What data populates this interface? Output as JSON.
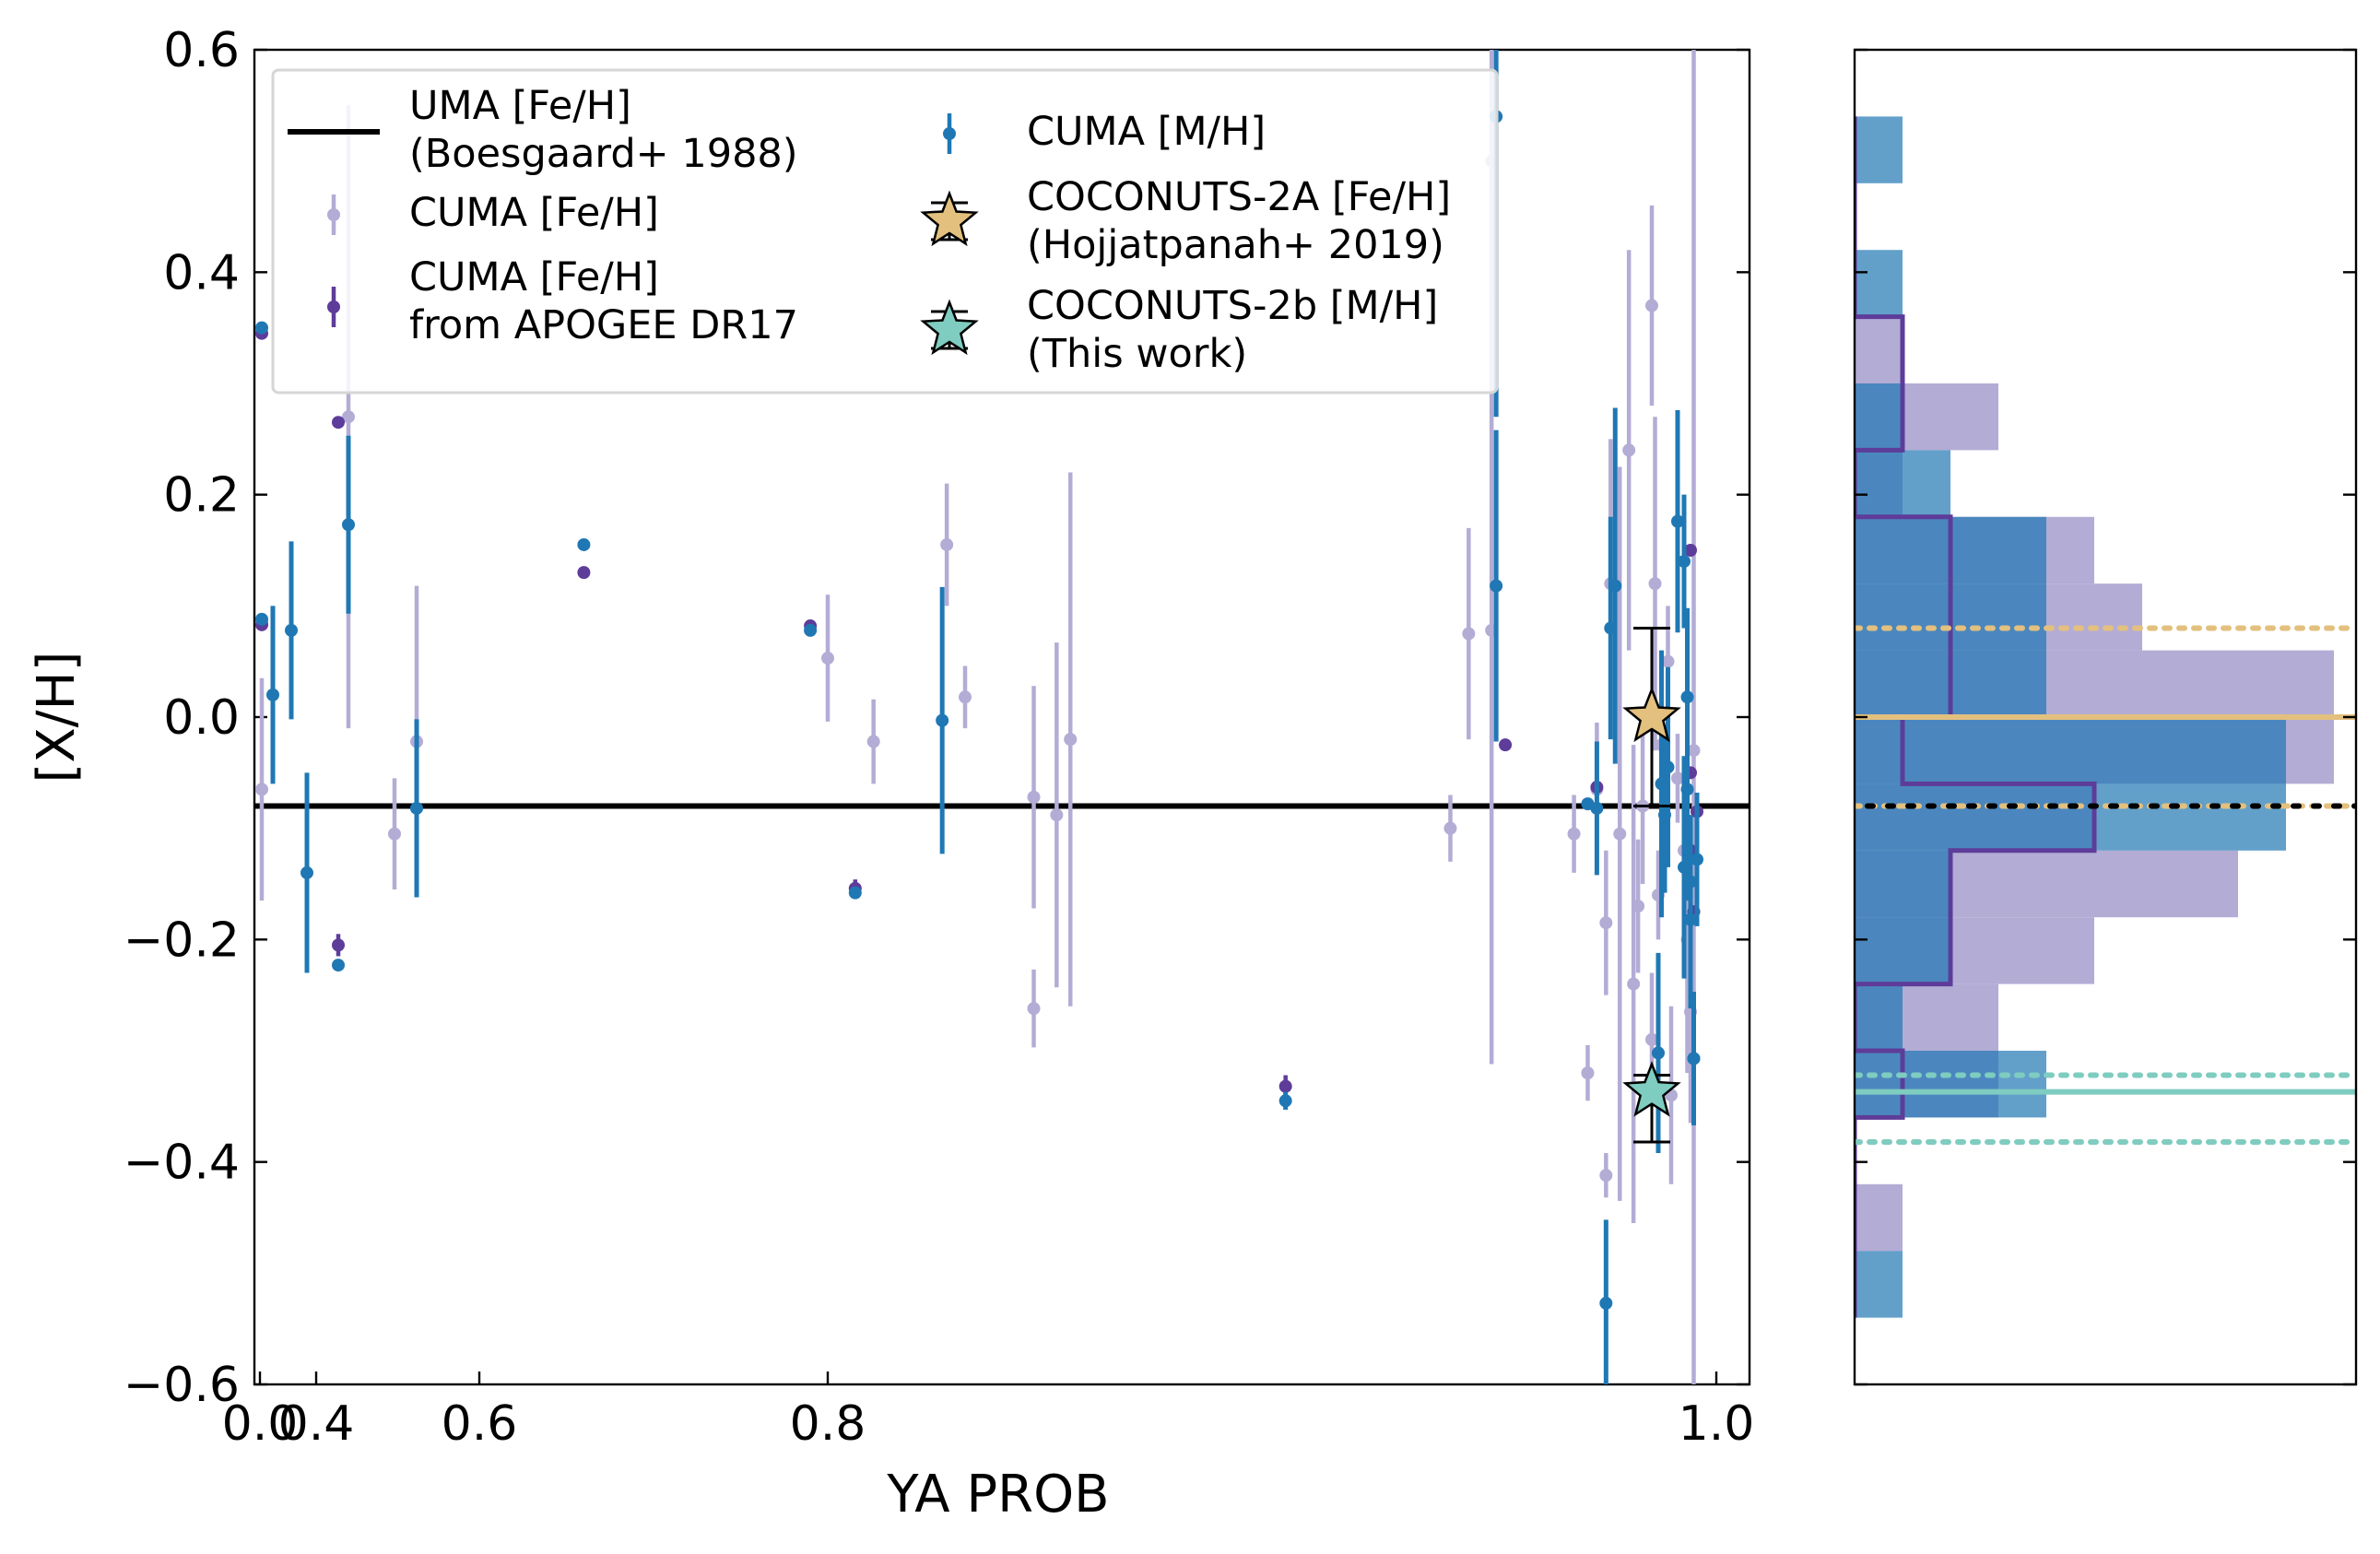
{
  "chart_data": [
    {
      "type": "scatter",
      "xlabel": "YA PROB",
      "ylabel": "[X/H]",
      "ylim": [
        -0.6,
        0.6
      ],
      "x_tick_positions": [
        0.0,
        0.4,
        0.6,
        0.8,
        1.0
      ],
      "x_tick_labels": [
        "0.0",
        "0.4",
        "0.6",
        "0.8",
        "1.0"
      ],
      "y_ticks": [
        0.6,
        0.4,
        0.2,
        0.0,
        -0.2,
        -0.4,
        -0.6
      ],
      "y_tick_labels": [
        "0.6",
        "0.4",
        "0.2",
        "0.0",
        "−0.2",
        "−0.4",
        "−0.6"
      ],
      "reference_line": {
        "name": "UMA [Fe/H] (Boesgaard+ 1988)",
        "y": -0.08,
        "color": "#000000"
      },
      "legend": {
        "position": "upper-left",
        "entries": [
          {
            "key": "uma",
            "lines": [
              "UMA [Fe/H]",
              "(Boesgaard+ 1988)"
            ]
          },
          {
            "key": "cuma_feh",
            "lines": [
              "CUMA [Fe/H]"
            ]
          },
          {
            "key": "cuma_apogee",
            "lines": [
              "CUMA [Fe/H]",
              "from APOGEE DR17"
            ]
          },
          {
            "key": "cuma_mh",
            "lines": [
              "CUMA [M/H]"
            ]
          },
          {
            "key": "coconuts2a",
            "lines": [
              "COCONUTS-2A [Fe/H]",
              "(Hojjatpanah+ 2019)"
            ]
          },
          {
            "key": "coconuts2b",
            "lines": [
              "COCONUTS-2b [M/H]",
              "(This work)"
            ]
          }
        ]
      },
      "series": [
        {
          "name": "CUMA [Fe/H]",
          "key": "cuma_feh",
          "color": "#b3acd5",
          "points": [
            {
              "x": 0.02,
              "y": 0.085,
              "err": 0.0
            },
            {
              "x": 0.02,
              "y": -0.065,
              "err": 0.1
            },
            {
              "x": 0.145,
              "y": 0.27,
              "err": 0.28
            },
            {
              "x": 0.22,
              "y": -0.105,
              "err": 0.05
            },
            {
              "x": 0.24,
              "y": -0.022,
              "err": 0.14
            },
            {
              "x": 0.8,
              "y": 0.053,
              "err": 0.057
            },
            {
              "x": 0.81,
              "y": -0.022,
              "err": 0.038
            },
            {
              "x": 0.826,
              "y": 0.155,
              "err": 0.055
            },
            {
              "x": 0.83,
              "y": 0.018,
              "err": 0.028
            },
            {
              "x": 0.845,
              "y": -0.072,
              "err": 0.1
            },
            {
              "x": 0.845,
              "y": -0.262,
              "err": 0.035
            },
            {
              "x": 0.85,
              "y": -0.088,
              "err": 0.155
            },
            {
              "x": 0.853,
              "y": -0.02,
              "err": 0.24
            },
            {
              "x": 0.936,
              "y": -0.1,
              "err": 0.03
            },
            {
              "x": 0.94,
              "y": 0.075,
              "err": 0.095
            },
            {
              "x": 0.945,
              "y": 0.078,
              "err": 0.39
            },
            {
              "x": 0.945,
              "y": 0.5,
              "err": 0.12
            },
            {
              "x": 0.963,
              "y": -0.105,
              "err": 0.035
            },
            {
              "x": 0.966,
              "y": -0.32,
              "err": 0.025
            },
            {
              "x": 0.968,
              "y": -0.065,
              "err": 0.06
            },
            {
              "x": 0.97,
              "y": -0.412,
              "err": 0.02
            },
            {
              "x": 0.97,
              "y": -0.185,
              "err": 0.065
            },
            {
              "x": 0.971,
              "y": 0.12,
              "err": 0.13
            },
            {
              "x": 0.973,
              "y": -0.105,
              "err": 0.33
            },
            {
              "x": 0.975,
              "y": 0.24,
              "err": 0.18
            },
            {
              "x": 0.976,
              "y": -0.24,
              "err": 0.215
            },
            {
              "x": 0.977,
              "y": -0.17,
              "err": 0.06
            },
            {
              "x": 0.978,
              "y": -0.08,
              "err": 0.07
            },
            {
              "x": 0.98,
              "y": 0.37,
              "err": 0.09
            },
            {
              "x": 0.98,
              "y": -0.29,
              "err": 0.06
            },
            {
              "x": 0.981,
              "y": 0.12,
              "err": 0.15
            },
            {
              "x": 0.982,
              "y": -0.16,
              "err": 0.04
            },
            {
              "x": 0.983,
              "y": -0.025,
              "err": 0.04
            },
            {
              "x": 0.985,
              "y": 0.05,
              "err": 0.05
            },
            {
              "x": 0.986,
              "y": -0.34,
              "err": 0.08
            },
            {
              "x": 0.988,
              "y": -0.055,
              "err": 0.04
            },
            {
              "x": 0.99,
              "y": -0.12,
              "err": 0.03
            },
            {
              "x": 0.991,
              "y": -0.2,
              "err": 0.12
            },
            {
              "x": 0.992,
              "y": -0.265,
              "err": 0.1
            },
            {
              "x": 0.993,
              "y": -0.03,
              "err": 0.63
            }
          ]
        },
        {
          "name": "CUMA [Fe/H] from APOGEE DR17",
          "key": "cuma_apogee",
          "color": "#5e3c99",
          "points": [
            {
              "x": 0.02,
              "y": 0.345,
              "err": 0.0
            },
            {
              "x": 0.02,
              "y": 0.083,
              "err": 0.0
            },
            {
              "x": 0.14,
              "y": 0.265,
              "err": 0.0
            },
            {
              "x": 0.14,
              "y": -0.205,
              "err": 0.01
            },
            {
              "x": 0.66,
              "y": 0.13,
              "err": 0.0
            },
            {
              "x": 0.79,
              "y": 0.082,
              "err": 0.0
            },
            {
              "x": 0.806,
              "y": -0.154,
              "err": 0.008
            },
            {
              "x": 0.9,
              "y": -0.332,
              "err": 0.01
            },
            {
              "x": 0.948,
              "y": -0.025,
              "err": 0.0
            },
            {
              "x": 0.968,
              "y": -0.063,
              "err": 0.0
            },
            {
              "x": 0.992,
              "y": 0.15,
              "err": 0.0
            },
            {
              "x": 0.992,
              "y": -0.05,
              "err": 0.0
            },
            {
              "x": 0.992,
              "y": -0.12,
              "err": 0.0
            },
            {
              "x": 0.993,
              "y": -0.175,
              "err": 0.0
            },
            {
              "x": 0.994,
              "y": -0.085,
              "err": 0.0
            }
          ]
        },
        {
          "name": "CUMA [M/H]",
          "key": "cuma_mh",
          "color": "#1f78b4",
          "points": [
            {
              "x": 0.02,
              "y": 0.35,
              "err": 0.0
            },
            {
              "x": 0.02,
              "y": 0.088,
              "err": 0.0
            },
            {
              "x": 0.045,
              "y": 0.02,
              "err": 0.08
            },
            {
              "x": 0.085,
              "y": 0.078,
              "err": 0.08
            },
            {
              "x": 0.105,
              "y": -0.14,
              "err": 0.09
            },
            {
              "x": 0.14,
              "y": -0.223,
              "err": 0.0
            },
            {
              "x": 0.165,
              "y": 0.173,
              "err": 0.08
            },
            {
              "x": 0.24,
              "y": -0.082,
              "err": 0.08
            },
            {
              "x": 0.66,
              "y": 0.155,
              "err": 0.0
            },
            {
              "x": 0.79,
              "y": 0.078,
              "err": 0.0
            },
            {
              "x": 0.806,
              "y": -0.158,
              "err": 0.0
            },
            {
              "x": 0.825,
              "y": -0.003,
              "err": 0.12
            },
            {
              "x": 0.9,
              "y": -0.345,
              "err": 0.008
            },
            {
              "x": 0.946,
              "y": 0.118,
              "err": 0.14
            },
            {
              "x": 0.946,
              "y": 0.54,
              "err": 0.27
            },
            {
              "x": 0.966,
              "y": -0.078,
              "err": 0.0
            },
            {
              "x": 0.968,
              "y": -0.082,
              "err": 0.06
            },
            {
              "x": 0.97,
              "y": -0.527,
              "err": 0.075
            },
            {
              "x": 0.971,
              "y": 0.08,
              "err": 0.1
            },
            {
              "x": 0.972,
              "y": 0.118,
              "err": 0.16
            },
            {
              "x": 0.982,
              "y": -0.302,
              "err": 0.09
            },
            {
              "x": 0.983,
              "y": -0.06,
              "err": 0.12
            },
            {
              "x": 0.984,
              "y": -0.088,
              "err": 0.07
            },
            {
              "x": 0.985,
              "y": -0.045,
              "err": 0.09
            },
            {
              "x": 0.988,
              "y": 0.176,
              "err": 0.1
            },
            {
              "x": 0.99,
              "y": -0.135,
              "err": 0.1
            },
            {
              "x": 0.99,
              "y": 0.14,
              "err": 0.06
            },
            {
              "x": 0.991,
              "y": 0.018,
              "err": 0.08
            },
            {
              "x": 0.991,
              "y": -0.065,
              "err": 0.1
            },
            {
              "x": 0.992,
              "y": -0.148,
              "err": 0.06
            },
            {
              "x": 0.992,
              "y": -0.182,
              "err": 0.08
            },
            {
              "x": 0.993,
              "y": -0.307,
              "err": 0.06
            },
            {
              "x": 0.993,
              "y": -0.307,
              "err": 0.06
            },
            {
              "x": 0.994,
              "y": -0.128,
              "err": 0.06
            }
          ]
        },
        {
          "name": "COCONUTS-2A [Fe/H] (Hojjatpanah+ 2019)",
          "key": "coconuts2a",
          "color": "#e3c07e",
          "points": [
            {
              "x": 0.98,
              "y": 0.0,
              "err": 0.08
            }
          ]
        },
        {
          "name": "COCONUTS-2b [M/H] (This work)",
          "key": "coconuts2b",
          "color": "#7fccc0",
          "points": [
            {
              "x": 0.98,
              "y": -0.337,
              "err_plus": 0.015,
              "err_minus": 0.045
            }
          ]
        }
      ]
    },
    {
      "type": "histogram",
      "orientation": "horizontal",
      "ylim": [
        -0.6,
        0.6
      ],
      "bins": [
        {
          "lo": 0.48,
          "hi": 0.54,
          "cuma_mh": 1,
          "cuma_feh": 0,
          "apogee": 0
        },
        {
          "lo": 0.36,
          "hi": 0.42,
          "cuma_mh": 1,
          "cuma_feh": 0,
          "apogee": 0
        },
        {
          "lo": 0.3,
          "hi": 0.36,
          "cuma_mh": 0,
          "cuma_feh": 1,
          "apogee": 1
        },
        {
          "lo": 0.24,
          "hi": 0.3,
          "cuma_mh": 1,
          "cuma_feh": 3,
          "apogee": 1
        },
        {
          "lo": 0.18,
          "hi": 0.24,
          "cuma_mh": 2,
          "cuma_feh": 1,
          "apogee": 0
        },
        {
          "lo": 0.12,
          "hi": 0.18,
          "cuma_mh": 4,
          "cuma_feh": 5,
          "apogee": 2
        },
        {
          "lo": 0.06,
          "hi": 0.12,
          "cuma_mh": 4,
          "cuma_feh": 6,
          "apogee": 2
        },
        {
          "lo": 0.0,
          "hi": 0.06,
          "cuma_mh": 4,
          "cuma_feh": 10,
          "apogee": 2
        },
        {
          "lo": -0.06,
          "hi": 0.0,
          "cuma_mh": 9,
          "cuma_feh": 10,
          "apogee": 1
        },
        {
          "lo": -0.12,
          "hi": -0.06,
          "cuma_mh": 9,
          "cuma_feh": 5,
          "apogee": 5
        },
        {
          "lo": -0.18,
          "hi": -0.12,
          "cuma_mh": 2,
          "cuma_feh": 8,
          "apogee": 2
        },
        {
          "lo": -0.24,
          "hi": -0.18,
          "cuma_mh": 2,
          "cuma_feh": 5,
          "apogee": 2
        },
        {
          "lo": -0.3,
          "hi": -0.24,
          "cuma_mh": 1,
          "cuma_feh": 3,
          "apogee": 0
        },
        {
          "lo": -0.36,
          "hi": -0.3,
          "cuma_mh": 4,
          "cuma_feh": 3,
          "apogee": 1
        },
        {
          "lo": -0.42,
          "hi": -0.36,
          "cuma_mh": 0,
          "cuma_feh": 0,
          "apogee": 0
        },
        {
          "lo": -0.48,
          "hi": -0.42,
          "cuma_mh": 0,
          "cuma_feh": 1,
          "apogee": 0
        },
        {
          "lo": -0.54,
          "hi": -0.48,
          "cuma_mh": 1,
          "cuma_feh": 0,
          "apogee": 0
        }
      ],
      "hlines": [
        {
          "name": "COCONUTS-2A [Fe/H]",
          "y": 0.0,
          "style": "solid",
          "color": "#e3c07e"
        },
        {
          "name": "COCONUTS-2A upper",
          "y": 0.08,
          "style": "dotted",
          "color": "#e3c07e"
        },
        {
          "name": "COCONUTS-2A lower",
          "y": -0.08,
          "style": "dotted",
          "color": "#e3c07e"
        },
        {
          "name": "UMA [Fe/H]",
          "y": -0.08,
          "style": "dotted",
          "color": "#000000"
        },
        {
          "name": "COCONUTS-2b [M/H]",
          "y": -0.337,
          "style": "solid",
          "color": "#7fccc0"
        },
        {
          "name": "COCONUTS-2b upper",
          "y": -0.322,
          "style": "dotted",
          "color": "#7fccc0"
        },
        {
          "name": "COCONUTS-2b lower",
          "y": -0.382,
          "style": "dotted",
          "color": "#7fccc0"
        }
      ]
    }
  ]
}
